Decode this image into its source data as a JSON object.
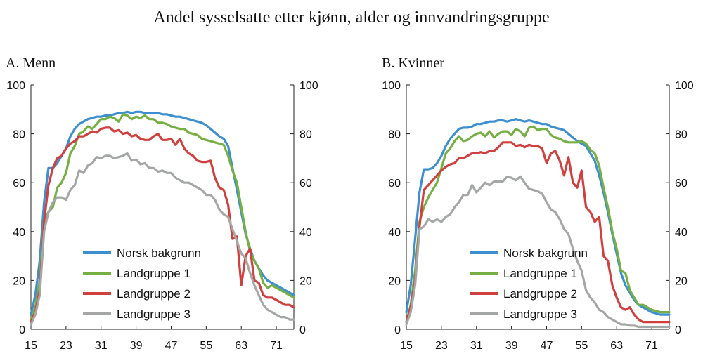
{
  "title": "Andel sysselsatte etter kjønn, alder og innvandringsgruppe",
  "chart_data": [
    {
      "type": "line",
      "title": "A. Menn",
      "xlabel": "",
      "ylabel": "",
      "xlim": [
        15,
        75
      ],
      "ylim": [
        0,
        100
      ],
      "xticks": [
        15,
        23,
        31,
        39,
        47,
        55,
        63,
        71
      ],
      "yticks": [
        0,
        20,
        40,
        60,
        80,
        100
      ],
      "grid": false,
      "legend": "bottom-left",
      "x": [
        15,
        16,
        17,
        18,
        19,
        20,
        21,
        22,
        23,
        24,
        25,
        26,
        27,
        28,
        29,
        30,
        31,
        32,
        33,
        34,
        35,
        36,
        37,
        38,
        39,
        40,
        41,
        42,
        43,
        44,
        45,
        46,
        47,
        48,
        49,
        50,
        51,
        52,
        53,
        54,
        55,
        56,
        57,
        58,
        59,
        60,
        61,
        62,
        63,
        64,
        65,
        66,
        67,
        68,
        69,
        70,
        71,
        72,
        73,
        74,
        75
      ],
      "series": [
        {
          "name": "Norsk bakgrunn",
          "color": "#3d8fcf",
          "values": [
            6,
            14,
            28,
            52,
            66,
            66,
            68,
            71,
            74,
            79,
            82,
            84,
            85,
            86,
            86.5,
            87,
            87,
            87.5,
            87.5,
            88,
            88.5,
            88.5,
            89,
            88.5,
            89,
            89,
            88.5,
            88.5,
            88.5,
            88.5,
            88,
            88,
            87.5,
            87,
            87,
            86.5,
            86,
            85.5,
            85,
            84.5,
            83.5,
            82,
            80.5,
            79,
            78,
            75,
            66,
            57,
            48,
            39,
            33,
            28,
            25,
            22,
            20,
            19,
            18,
            17,
            16,
            15,
            14
          ]
        },
        {
          "name": "Landgruppe 1",
          "color": "#76b043",
          "values": [
            4,
            9,
            20,
            45,
            48,
            50,
            58,
            60,
            64,
            72,
            75,
            80,
            81,
            83,
            82,
            84,
            86,
            86,
            87,
            86.5,
            85,
            88,
            87.5,
            86,
            87,
            86.5,
            87.5,
            86,
            86,
            84.5,
            84.5,
            84,
            83,
            82.5,
            82,
            82,
            80.5,
            80,
            79.5,
            78,
            77.5,
            77,
            76.5,
            76,
            75.5,
            71,
            65,
            60,
            50,
            40,
            32,
            28,
            25,
            19,
            17,
            18,
            17,
            16,
            15,
            14,
            13
          ]
        },
        {
          "name": "Landgruppe 2",
          "color": "#d0403f",
          "values": [
            3,
            7,
            16,
            44,
            59,
            66,
            70,
            71,
            74,
            76,
            77,
            79,
            79,
            80,
            81,
            80.5,
            82,
            82.5,
            82.5,
            81,
            81.5,
            80,
            80.5,
            79,
            79.5,
            78,
            77.5,
            77.5,
            79,
            80,
            77.5,
            77.5,
            78,
            75.5,
            78,
            74,
            72,
            71,
            69,
            68.5,
            68.5,
            69,
            62,
            58,
            57,
            51,
            37,
            38,
            18,
            30,
            33,
            20,
            19,
            14,
            13,
            13,
            12,
            11,
            10,
            10,
            9
          ]
        },
        {
          "name": "Landgruppe 3",
          "color": "#a5a7a7",
          "values": [
            2,
            6,
            14,
            40,
            48,
            52,
            54,
            54,
            53,
            57,
            59,
            65,
            64,
            67,
            68,
            70.5,
            70,
            71,
            71,
            70,
            70.5,
            71,
            72,
            69,
            69.5,
            67.5,
            68,
            66,
            66,
            64.5,
            65,
            64,
            64,
            62,
            61,
            60,
            60,
            59,
            58,
            57,
            55,
            55,
            53,
            49,
            47,
            46,
            41,
            36,
            31,
            29,
            23,
            18,
            14,
            10,
            8,
            7,
            6,
            5,
            5,
            4,
            4
          ]
        }
      ]
    },
    {
      "type": "line",
      "title": "B. Kvinner",
      "xlabel": "",
      "ylabel": "",
      "xlim": [
        15,
        75
      ],
      "ylim": [
        0,
        100
      ],
      "xticks": [
        15,
        23,
        31,
        39,
        47,
        55,
        63,
        71
      ],
      "yticks": [
        0,
        20,
        40,
        60,
        80,
        100
      ],
      "grid": false,
      "legend": "bottom-left",
      "x": [
        15,
        16,
        17,
        18,
        19,
        20,
        21,
        22,
        23,
        24,
        25,
        26,
        27,
        28,
        29,
        30,
        31,
        32,
        33,
        34,
        35,
        36,
        37,
        38,
        39,
        40,
        41,
        42,
        43,
        44,
        45,
        46,
        47,
        48,
        49,
        50,
        51,
        52,
        53,
        54,
        55,
        56,
        57,
        58,
        59,
        60,
        61,
        62,
        63,
        64,
        65,
        66,
        67,
        68,
        69,
        70,
        71,
        72,
        73,
        74,
        75
      ],
      "series": [
        {
          "name": "Norsk bakgrunn",
          "color": "#3d8fcf",
          "values": [
            7,
            18,
            37,
            56,
            65.5,
            65.5,
            66,
            68,
            71,
            75,
            78,
            80,
            82,
            82.5,
            82.5,
            83,
            84,
            84,
            84.5,
            85,
            85,
            85.5,
            85.5,
            85,
            85.5,
            86,
            85.5,
            85,
            85.5,
            85,
            84.5,
            84,
            84,
            83,
            82.5,
            82,
            81.5,
            80,
            78.5,
            77,
            76,
            75,
            72,
            69,
            63,
            56,
            48,
            39,
            31,
            23,
            18,
            15,
            12,
            10,
            9,
            8,
            7,
            6.5,
            6,
            6,
            6
          ]
        },
        {
          "name": "Landgruppe 1",
          "color": "#76b043",
          "values": [
            3,
            10,
            24,
            44,
            50,
            54,
            57,
            60,
            66,
            72,
            74,
            77,
            79,
            77,
            77.5,
            79,
            80,
            80.5,
            79,
            81,
            78.5,
            80,
            81,
            81,
            79.5,
            82,
            81,
            79,
            82.5,
            83,
            81.5,
            82,
            82,
            79.5,
            78.5,
            78,
            77,
            76.5,
            76.5,
            76.5,
            77,
            76,
            73.5,
            72,
            67,
            58,
            50,
            40,
            33,
            24,
            23,
            16,
            13,
            10,
            10,
            9,
            8,
            7.5,
            7,
            7,
            7
          ]
        },
        {
          "name": "Landgruppe 2",
          "color": "#d0403f",
          "values": [
            3,
            9,
            20,
            42,
            57,
            59,
            61,
            63,
            65,
            66.5,
            67.5,
            68,
            70,
            70,
            71,
            72,
            72,
            72.5,
            72,
            73,
            73,
            74.5,
            76.5,
            76.5,
            76.5,
            75,
            75.5,
            74.5,
            75.5,
            75,
            75,
            74,
            68,
            72,
            73,
            69,
            63,
            70.5,
            60,
            58,
            65,
            50,
            48,
            44,
            46,
            30,
            28,
            18,
            13,
            9,
            8,
            9,
            6,
            4,
            3,
            3,
            3,
            3,
            3,
            3,
            3
          ]
        },
        {
          "name": "Landgruppe 3",
          "color": "#a5a7a7",
          "values": [
            2,
            7,
            18,
            41,
            42,
            45,
            44,
            45,
            44,
            46,
            47,
            50,
            52,
            55,
            55,
            59,
            56,
            58,
            60,
            59,
            60.5,
            60.5,
            60.5,
            62.5,
            62,
            61,
            62.5,
            60,
            57.5,
            57,
            56.5,
            55.5,
            52,
            49,
            48,
            45,
            41,
            39,
            33,
            28,
            24,
            16,
            13,
            11,
            8,
            7,
            5,
            4,
            3,
            2,
            2,
            1.5,
            1.5,
            1,
            1,
            1,
            1,
            1,
            1,
            1,
            1
          ]
        }
      ]
    }
  ]
}
